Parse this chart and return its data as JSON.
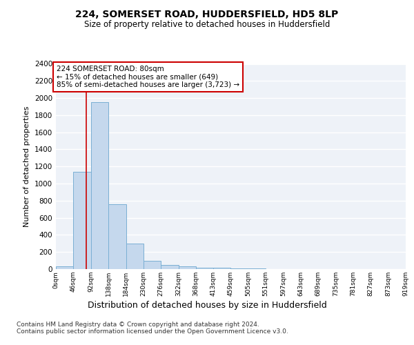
{
  "title1": "224, SOMERSET ROAD, HUDDERSFIELD, HD5 8LP",
  "title2": "Size of property relative to detached houses in Huddersfield",
  "xlabel": "Distribution of detached houses by size in Huddersfield",
  "ylabel": "Number of detached properties",
  "bin_edges": [
    0,
    46,
    92,
    138,
    184,
    230,
    276,
    322,
    368,
    413,
    459,
    505,
    551,
    597,
    643,
    689,
    735,
    781,
    827,
    873,
    919
  ],
  "bar_heights": [
    30,
    1140,
    1950,
    760,
    300,
    100,
    50,
    30,
    20,
    15,
    10,
    5,
    3,
    2,
    1,
    1,
    1,
    1,
    1,
    1
  ],
  "bar_color": "#c5d8ed",
  "bar_edge_color": "#7aafd4",
  "property_size": 80,
  "red_line_color": "#cc0000",
  "annotation_line1": "224 SOMERSET ROAD: 80sqm",
  "annotation_line2": "← 15% of detached houses are smaller (649)",
  "annotation_line3": "85% of semi-detached houses are larger (3,723) →",
  "annotation_box_color": "white",
  "annotation_box_edge": "#cc0000",
  "ylim": [
    0,
    2400
  ],
  "yticks": [
    0,
    200,
    400,
    600,
    800,
    1000,
    1200,
    1400,
    1600,
    1800,
    2000,
    2200,
    2400
  ],
  "background_color": "#eef2f8",
  "grid_color": "#ffffff",
  "footer1": "Contains HM Land Registry data © Crown copyright and database right 2024.",
  "footer2": "Contains public sector information licensed under the Open Government Licence v3.0."
}
